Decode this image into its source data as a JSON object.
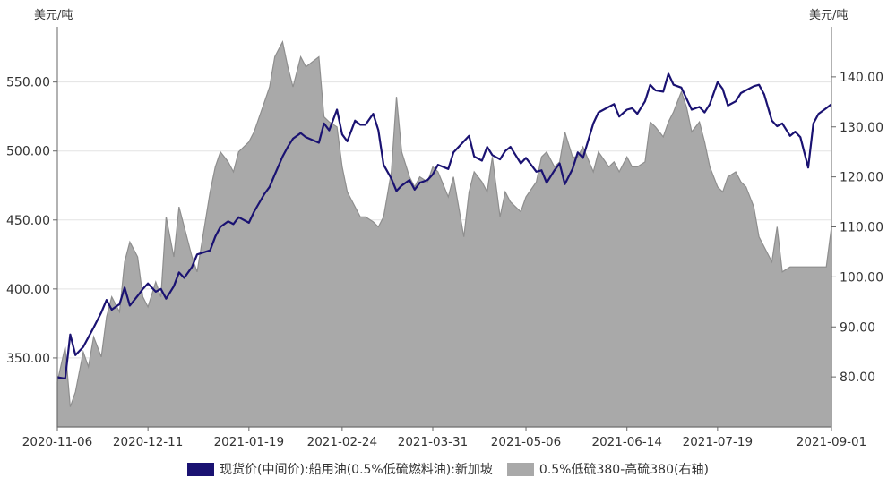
{
  "chart_data": {
    "type": "line+area",
    "left_axis_unit": "美元/吨",
    "right_axis_unit": "美元/吨",
    "left_ylim": [
      300,
      590
    ],
    "right_ylim": [
      70,
      150
    ],
    "left_ticks": [
      "350.00",
      "400.00",
      "450.00",
      "500.00",
      "550.00"
    ],
    "left_tick_values": [
      350,
      400,
      450,
      500,
      550
    ],
    "right_ticks": [
      "80.00",
      "90.00",
      "100.00",
      "110.00",
      "120.00",
      "130.00",
      "140.00"
    ],
    "right_tick_values": [
      80,
      90,
      100,
      110,
      120,
      130,
      140
    ],
    "x_tick_labels": [
      "2020-11-06",
      "2020-12-11",
      "2021-01-19",
      "2021-02-24",
      "2021-03-31",
      "2021-05-06",
      "2021-06-14",
      "2021-07-19",
      "2021-09-01"
    ],
    "grid": true,
    "legend_position": "bottom",
    "series": [
      {
        "name": "现货价(中间价):船用油(0.5%低硫燃料油):新加坡",
        "axis": "left",
        "type": "line",
        "color": "#1a1272",
        "dates": [
          "2020-11-06",
          "2020-11-09",
          "2020-11-11",
          "2020-11-13",
          "2020-11-16",
          "2020-11-18",
          "2020-11-20",
          "2020-11-23",
          "2020-11-25",
          "2020-11-27",
          "2020-11-30",
          "2020-12-02",
          "2020-12-04",
          "2020-12-07",
          "2020-12-09",
          "2020-12-11",
          "2020-12-14",
          "2020-12-16",
          "2020-12-18",
          "2020-12-21",
          "2020-12-23",
          "2020-12-25",
          "2020-12-28",
          "2020-12-30",
          "2021-01-04",
          "2021-01-06",
          "2021-01-08",
          "2021-01-11",
          "2021-01-13",
          "2021-01-15",
          "2021-01-19",
          "2021-01-21",
          "2021-01-25",
          "2021-01-27",
          "2021-01-29",
          "2021-02-01",
          "2021-02-03",
          "2021-02-05",
          "2021-02-08",
          "2021-02-10",
          "2021-02-15",
          "2021-02-17",
          "2021-02-19",
          "2021-02-22",
          "2021-02-24",
          "2021-02-26",
          "2021-03-01",
          "2021-03-03",
          "2021-03-05",
          "2021-03-08",
          "2021-03-10",
          "2021-03-12",
          "2021-03-15",
          "2021-03-17",
          "2021-03-19",
          "2021-03-22",
          "2021-03-24",
          "2021-03-26",
          "2021-03-29",
          "2021-03-31",
          "2021-04-02",
          "2021-04-06",
          "2021-04-08",
          "2021-04-12",
          "2021-04-14",
          "2021-04-16",
          "2021-04-19",
          "2021-04-21",
          "2021-04-23",
          "2021-04-26",
          "2021-04-28",
          "2021-04-30",
          "2021-05-04",
          "2021-05-06",
          "2021-05-10",
          "2021-05-12",
          "2021-05-14",
          "2021-05-17",
          "2021-05-19",
          "2021-05-21",
          "2021-05-24",
          "2021-05-26",
          "2021-05-28",
          "2021-06-01",
          "2021-06-03",
          "2021-06-07",
          "2021-06-09",
          "2021-06-11",
          "2021-06-14",
          "2021-06-16",
          "2021-06-18",
          "2021-06-21",
          "2021-06-23",
          "2021-06-25",
          "2021-06-28",
          "2021-06-30",
          "2021-07-02",
          "2021-07-05",
          "2021-07-07",
          "2021-07-09",
          "2021-07-12",
          "2021-07-14",
          "2021-07-16",
          "2021-07-19",
          "2021-07-21",
          "2021-07-23",
          "2021-07-26",
          "2021-07-28",
          "2021-07-30",
          "2021-08-02",
          "2021-08-04",
          "2021-08-06",
          "2021-08-09",
          "2021-08-11",
          "2021-08-13",
          "2021-08-16",
          "2021-08-18",
          "2021-08-20",
          "2021-08-23",
          "2021-08-25",
          "2021-08-27",
          "2021-08-30",
          "2021-09-01"
        ],
        "values": [
          336,
          335,
          367,
          352,
          358,
          365,
          372,
          383,
          392,
          385,
          389,
          401,
          388,
          395,
          400,
          404,
          398,
          400,
          393,
          402,
          412,
          408,
          416,
          425,
          428,
          438,
          445,
          449,
          447,
          452,
          448,
          456,
          469,
          474,
          483,
          496,
          503,
          509,
          513,
          510,
          506,
          520,
          515,
          530,
          512,
          507,
          522,
          519,
          519,
          527,
          515,
          490,
          480,
          471,
          475,
          479,
          472,
          477,
          479,
          483,
          490,
          487,
          499,
          507,
          511,
          496,
          493,
          503,
          497,
          494,
          500,
          503,
          491,
          495,
          485,
          486,
          477,
          486,
          491,
          476,
          487,
          499,
          495,
          520,
          528,
          532,
          534,
          525,
          530,
          531,
          527,
          536,
          548,
          544,
          543,
          556,
          548,
          546,
          538,
          530,
          532,
          528,
          534,
          550,
          545,
          533,
          536,
          542,
          544,
          547,
          548,
          541,
          522,
          518,
          520,
          511,
          514,
          510,
          488,
          520,
          527,
          531,
          534
        ]
      },
      {
        "name": "0.5%低硫380-高硫380(右轴)",
        "axis": "right",
        "type": "area",
        "color": "#a9a9a9",
        "dates": [
          "2020-11-06",
          "2020-11-09",
          "2020-11-11",
          "2020-11-13",
          "2020-11-16",
          "2020-11-18",
          "2020-11-20",
          "2020-11-23",
          "2020-11-25",
          "2020-11-27",
          "2020-11-30",
          "2020-12-02",
          "2020-12-04",
          "2020-12-07",
          "2020-12-09",
          "2020-12-11",
          "2020-12-14",
          "2020-12-16",
          "2020-12-18",
          "2020-12-21",
          "2020-12-23",
          "2020-12-25",
          "2020-12-28",
          "2020-12-30",
          "2021-01-04",
          "2021-01-06",
          "2021-01-08",
          "2021-01-11",
          "2021-01-13",
          "2021-01-15",
          "2021-01-19",
          "2021-01-21",
          "2021-01-25",
          "2021-01-27",
          "2021-01-29",
          "2021-02-01",
          "2021-02-03",
          "2021-02-05",
          "2021-02-08",
          "2021-02-10",
          "2021-02-15",
          "2021-02-17",
          "2021-02-19",
          "2021-02-22",
          "2021-02-24",
          "2021-02-26",
          "2021-03-01",
          "2021-03-03",
          "2021-03-05",
          "2021-03-08",
          "2021-03-10",
          "2021-03-12",
          "2021-03-15",
          "2021-03-17",
          "2021-03-19",
          "2021-03-22",
          "2021-03-24",
          "2021-03-26",
          "2021-03-29",
          "2021-03-31",
          "2021-04-02",
          "2021-04-06",
          "2021-04-08",
          "2021-04-12",
          "2021-04-14",
          "2021-04-16",
          "2021-04-19",
          "2021-04-21",
          "2021-04-23",
          "2021-04-26",
          "2021-04-28",
          "2021-04-30",
          "2021-05-04",
          "2021-05-06",
          "2021-05-10",
          "2021-05-12",
          "2021-05-14",
          "2021-05-17",
          "2021-05-19",
          "2021-05-21",
          "2021-05-24",
          "2021-05-26",
          "2021-05-28",
          "2021-06-01",
          "2021-06-03",
          "2021-06-07",
          "2021-06-09",
          "2021-06-11",
          "2021-06-14",
          "2021-06-16",
          "2021-06-18",
          "2021-06-21",
          "2021-06-23",
          "2021-06-25",
          "2021-06-28",
          "2021-06-30",
          "2021-07-02",
          "2021-07-05",
          "2021-07-07",
          "2021-07-09",
          "2021-07-12",
          "2021-07-14",
          "2021-07-16",
          "2021-07-19",
          "2021-07-21",
          "2021-07-23",
          "2021-07-26",
          "2021-07-28",
          "2021-07-30",
          "2021-08-02",
          "2021-08-04",
          "2021-08-06",
          "2021-08-09",
          "2021-08-11",
          "2021-08-13",
          "2021-08-16",
          "2021-08-18",
          "2021-08-20",
          "2021-08-23",
          "2021-08-25",
          "2021-08-27",
          "2021-08-30",
          "2021-09-01"
        ],
        "values": [
          79,
          86,
          74,
          77,
          85,
          82,
          88,
          84,
          92,
          96,
          93,
          103,
          107,
          104,
          96,
          94,
          99,
          96,
          112,
          104,
          114,
          110,
          104,
          101,
          117,
          122,
          125,
          123,
          121,
          125,
          127,
          129,
          135,
          138,
          144,
          147,
          142,
          138,
          144,
          142,
          144,
          132,
          131,
          130,
          122,
          117,
          114,
          112,
          112,
          111,
          110,
          112,
          121,
          136,
          125,
          120,
          118,
          120,
          119,
          122,
          121,
          116,
          120,
          108,
          117,
          121,
          119,
          117,
          124,
          112,
          117,
          115,
          113,
          116,
          119,
          124,
          125,
          122,
          123,
          129,
          124,
          124,
          126,
          121,
          125,
          122,
          123,
          121,
          124,
          122,
          122,
          123,
          131,
          130,
          128,
          131,
          133,
          137,
          134,
          129,
          131,
          127,
          122,
          118,
          117,
          120,
          121,
          119,
          118,
          114,
          108,
          106,
          103,
          110,
          101,
          102,
          102,
          102,
          102,
          102,
          102,
          102,
          110
        ]
      }
    ]
  }
}
